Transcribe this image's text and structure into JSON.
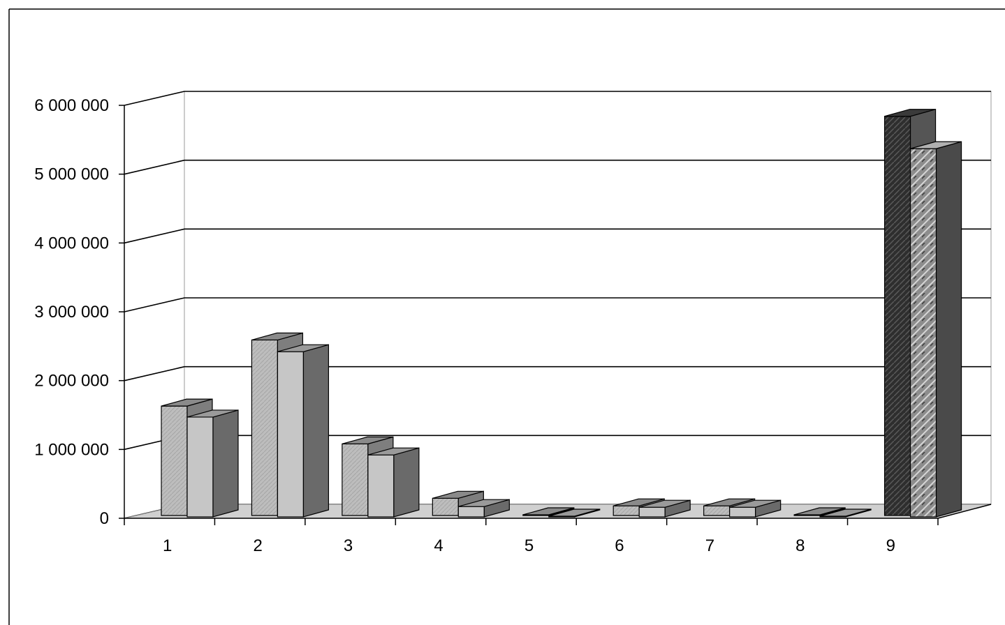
{
  "chart_data": {
    "type": "bar",
    "title": "",
    "xlabel": "",
    "ylabel": "",
    "categories": [
      "1",
      "2",
      "3",
      "4",
      "5",
      "6",
      "7",
      "8",
      "9"
    ],
    "series": [
      {
        "values": [
          1590000,
          2550000,
          1040000,
          250000,
          10000,
          140000,
          140000,
          10000,
          5800000
        ]
      },
      {
        "values": [
          1450000,
          2400000,
          900000,
          150000,
          10000,
          140000,
          140000,
          10000,
          5350000
        ]
      }
    ],
    "ylim": [
      0,
      6000000
    ],
    "yticks": [
      0,
      1000000,
      2000000,
      3000000,
      4000000,
      5000000,
      6000000
    ],
    "ytick_labels": [
      "0",
      "1 000 000",
      "2 000 000",
      "3 000 000",
      "4 000 000",
      "5 000 000",
      "6 000 000"
    ],
    "grid": true,
    "legend": "none",
    "colors": {
      "series1_front": "#b8b8b8",
      "series1_side": "#7e7e7e",
      "series1_top": "#8a8a8a",
      "series2_front": "#c6c6c6",
      "series2_side": "#6a6a6a",
      "series2_top": "#9a9a9a",
      "highlight_front": "#2a2a2a",
      "highlight_side": "#555555",
      "floor": "#d0d0d0",
      "wall": "#ffffff",
      "grid": "#000000"
    }
  }
}
